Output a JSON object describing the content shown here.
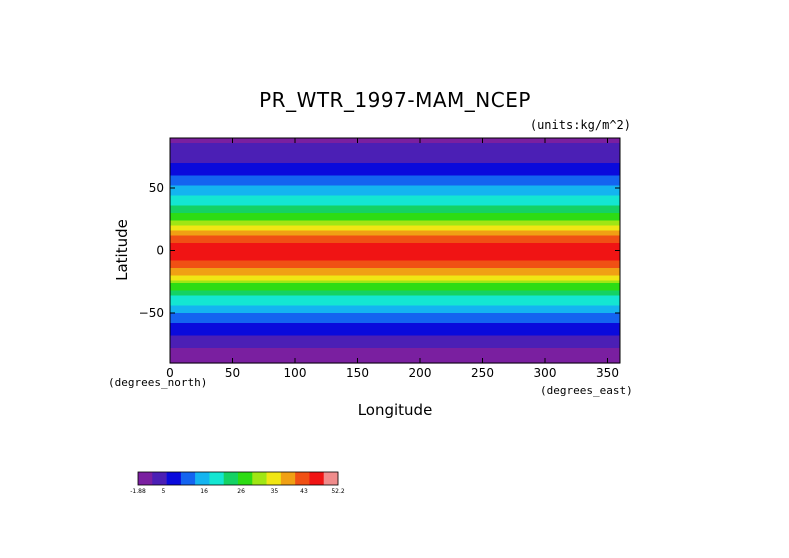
{
  "chart_data": {
    "type": "heatmap",
    "title": "PR_WTR_1997-MAM_NCEP",
    "units": "(units:kg/m^2)",
    "xlabel": "Longitude",
    "ylabel": "Latitude",
    "x_unit": "(degrees_east)",
    "y_unit": "(degrees_north)",
    "xlim": [
      0,
      360
    ],
    "ylim": [
      -90,
      90
    ],
    "x_ticks": [
      0,
      50,
      100,
      150,
      200,
      250,
      300,
      350
    ],
    "y_ticks": [
      50,
      0,
      -50
    ],
    "x_tick_labels": [
      "0",
      "50",
      "100",
      "150",
      "200",
      "250",
      "300",
      "350"
    ],
    "y_tick_labels": [
      "50",
      "0",
      "−50"
    ],
    "colorbar": {
      "colors": [
        "#7a1fa0",
        "#4b1fb5",
        "#0a0adc",
        "#1464f0",
        "#14b4f0",
        "#14e6d2",
        "#14d264",
        "#2ddc14",
        "#a0e614",
        "#f0e614",
        "#f0a014",
        "#f05014",
        "#f01414",
        "#f08c8c"
      ],
      "labels": [
        {
          "v": -1.88,
          "text": "-1.88"
        },
        {
          "v": 5,
          "text": "5"
        },
        {
          "v": 16,
          "text": "16"
        },
        {
          "v": 26,
          "text": "26"
        },
        {
          "v": 35,
          "text": "35"
        },
        {
          "v": 43,
          "text": "43"
        },
        {
          "v": 52.2,
          "text": "52.2"
        }
      ]
    },
    "zonal_profile": [
      {
        "lat": 90,
        "value": 1
      },
      {
        "lat": 80,
        "value": 3
      },
      {
        "lat": 70,
        "value": 6
      },
      {
        "lat": 60,
        "value": 10
      },
      {
        "lat": 50,
        "value": 14
      },
      {
        "lat": 40,
        "value": 19
      },
      {
        "lat": 30,
        "value": 25
      },
      {
        "lat": 20,
        "value": 32
      },
      {
        "lat": 10,
        "value": 42
      },
      {
        "lat": 0,
        "value": 47
      },
      {
        "lat": -10,
        "value": 44
      },
      {
        "lat": -20,
        "value": 36
      },
      {
        "lat": -30,
        "value": 26
      },
      {
        "lat": -40,
        "value": 19
      },
      {
        "lat": -50,
        "value": 14
      },
      {
        "lat": -60,
        "value": 9
      },
      {
        "lat": -70,
        "value": 5
      },
      {
        "lat": -80,
        "value": 1
      },
      {
        "lat": -90,
        "value": 0
      }
    ]
  }
}
